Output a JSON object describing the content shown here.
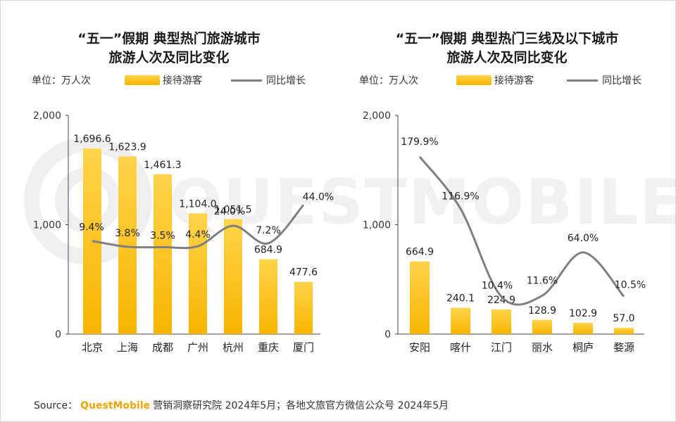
{
  "watermark": "QUESTMOBILE",
  "colors": {
    "bar_top": "#FFD44A",
    "bar_bottom": "#F7B500",
    "line": "#7f7f7f",
    "brand": "#F5A300"
  },
  "source": {
    "prefix": "Source：",
    "brand": "QuestMobile",
    "text": "营销洞察研究院 2024年5月；各地文旅官方微信公众号 2024年5月"
  },
  "chart_data": [
    {
      "type": "bar",
      "title_line1": "“五一”假期 典型热门旅游城市",
      "title_line2": "旅游人次及同比变化",
      "unit": "单位：万人次",
      "legend": [
        "接待游客",
        "同比增长"
      ],
      "categories": [
        "北京",
        "上海",
        "成都",
        "广州",
        "杭州",
        "重庆",
        "厦门"
      ],
      "series": [
        {
          "name": "接待游客",
          "type": "bar",
          "values": [
            1696.6,
            1623.9,
            1461.3,
            1104.0,
            1051.5,
            684.9,
            477.6
          ],
          "labels": [
            "1,696.6",
            "1,623.9",
            "1,461.3",
            "1,104.0",
            "1,051.5",
            "684.9",
            "477.6"
          ]
        },
        {
          "name": "同比增长",
          "type": "line",
          "values": [
            9.4,
            3.8,
            3.5,
            4.4,
            24.0,
            7.2,
            44.0
          ],
          "labels": [
            "9.4%",
            "3.8%",
            "3.5%",
            "4.4%",
            "24.0%",
            "7.2%",
            "44.0%"
          ]
        }
      ],
      "yticks": [
        "0",
        "1,000",
        "2,000"
      ],
      "ylim": [
        0,
        2000
      ],
      "y2lim": [
        -80,
        130
      ],
      "grid": false
    },
    {
      "type": "bar",
      "title_line1": "“五一”假期 典型热门三线及以下城市",
      "title_line2": "旅游人次及同比变化",
      "unit": "单位：万人次",
      "legend": [
        "接待游客",
        "同比增长"
      ],
      "categories": [
        "安阳",
        "喀什",
        "江门",
        "丽水",
        "桐庐",
        "婺源"
      ],
      "series": [
        {
          "name": "接待游客",
          "type": "bar",
          "values": [
            664.9,
            240.1,
            224.9,
            128.9,
            102.9,
            57.0
          ],
          "labels": [
            "664.9",
            "240.1",
            "224.9",
            "128.9",
            "102.9",
            "57.0"
          ]
        },
        {
          "name": "同比增长",
          "type": "line",
          "values": [
            179.9,
            116.9,
            10.4,
            11.6,
            64.0,
            10.5
          ],
          "labels": [
            "179.9%",
            "116.9%",
            "10.4%",
            "11.6%",
            "64.0%",
            "10.5%"
          ]
        }
      ],
      "yticks": [
        "0",
        "1,000",
        "2,000"
      ],
      "ylim": [
        0,
        2000
      ],
      "y2lim": [
        -35,
        230
      ],
      "grid": false
    }
  ]
}
